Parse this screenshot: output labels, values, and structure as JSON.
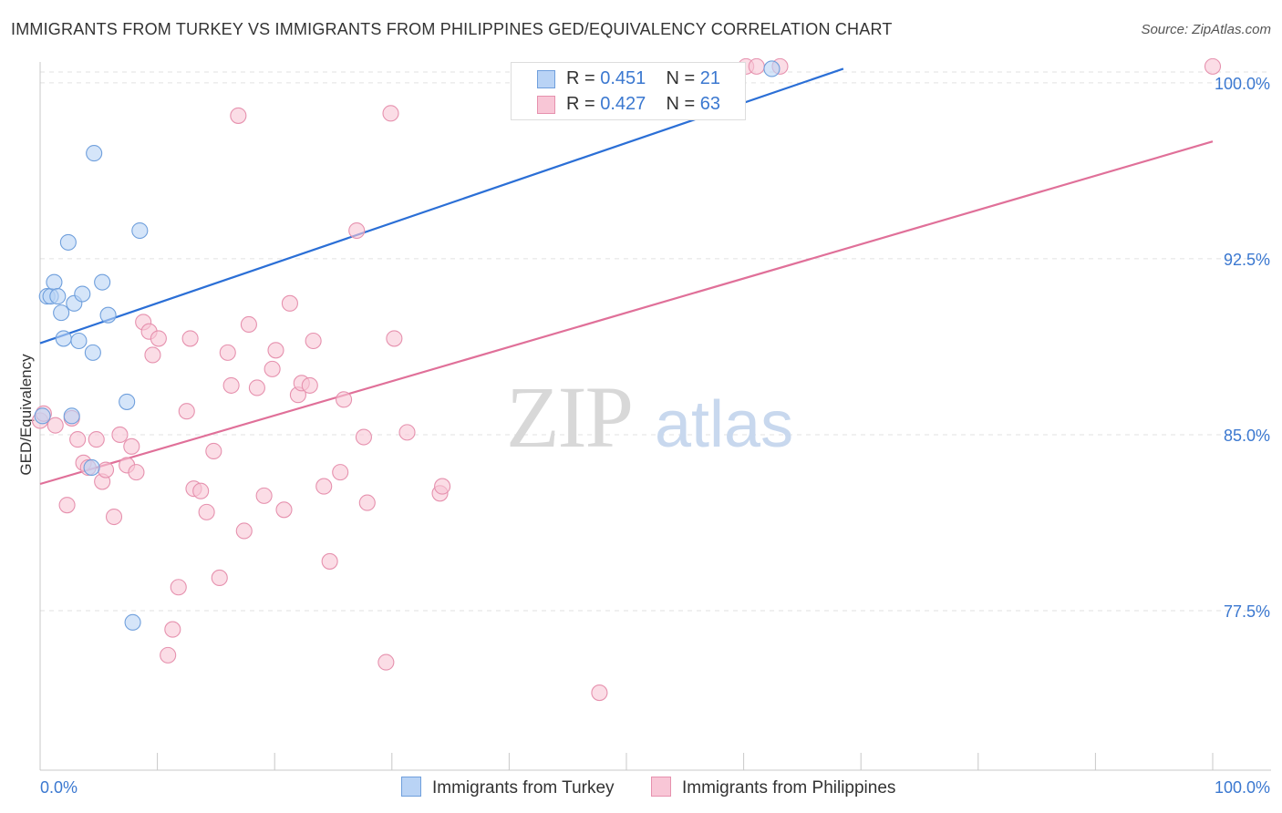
{
  "title": "IMMIGRANTS FROM TURKEY VS IMMIGRANTS FROM PHILIPPINES GED/EQUIVALENCY CORRELATION CHART",
  "source": "Source: ZipAtlas.com",
  "watermark": {
    "zip": "ZIP",
    "atlas": "atlas"
  },
  "legend": [
    {
      "r_label": "R =",
      "r_value": "0.451",
      "n_label": "N =",
      "n_value": "21"
    },
    {
      "r_label": "R =",
      "r_value": "0.427",
      "n_label": "N =",
      "n_value": "63"
    }
  ],
  "bottom_legend": [
    "Immigrants from Turkey",
    "Immigrants from Philippines"
  ],
  "colors": {
    "turkey_fill": "#b9d3f5",
    "turkey_stroke": "#6f9fdc",
    "turkey_line": "#2b6fd6",
    "phil_fill": "#f8c6d6",
    "phil_stroke": "#e691ae",
    "phil_line": "#e07099",
    "axis_label": "#3b78d0",
    "grid": "#e2e2e2"
  },
  "chart_data": {
    "type": "scatter",
    "title": "IMMIGRANTS FROM TURKEY VS IMMIGRANTS FROM PHILIPPINES GED/EQUIVALENCY CORRELATION CHART",
    "xlabel": "",
    "ylabel": "GED/Equivalency",
    "xlim": [
      0,
      100
    ],
    "ylim": [
      70.7,
      101.2
    ],
    "x_tick_labels": [
      "0.0%",
      "100.0%"
    ],
    "y_ticks": [
      77.5,
      85.0,
      92.5,
      100.0
    ],
    "y_tick_labels": [
      "77.5%",
      "85.0%",
      "92.5%",
      "100.0%"
    ],
    "grid": true,
    "series": [
      {
        "name": "Immigrants from Turkey",
        "points": [
          [
            0.2,
            85.8
          ],
          [
            0.6,
            90.9
          ],
          [
            0.9,
            90.9
          ],
          [
            1.2,
            91.5
          ],
          [
            1.5,
            90.9
          ],
          [
            1.8,
            90.2
          ],
          [
            2.0,
            89.1
          ],
          [
            2.4,
            93.2
          ],
          [
            2.7,
            85.8
          ],
          [
            2.9,
            90.6
          ],
          [
            3.3,
            89.0
          ],
          [
            3.6,
            91.0
          ],
          [
            4.4,
            83.6
          ],
          [
            4.5,
            88.5
          ],
          [
            4.6,
            97.0
          ],
          [
            5.3,
            91.5
          ],
          [
            5.8,
            90.1
          ],
          [
            7.4,
            86.4
          ],
          [
            7.9,
            77.0
          ],
          [
            8.5,
            93.7
          ],
          [
            62.4,
            100.6
          ]
        ],
        "trend": {
          "x0": 0.0,
          "y0": 88.9,
          "x1": 68.5,
          "y1": 100.6
        }
      },
      {
        "name": "Immigrants from Philippines",
        "points": [
          [
            0.0,
            85.6
          ],
          [
            0.3,
            85.9
          ],
          [
            1.3,
            85.4
          ],
          [
            2.3,
            82.0
          ],
          [
            2.7,
            85.7
          ],
          [
            3.2,
            84.8
          ],
          [
            3.7,
            83.8
          ],
          [
            4.1,
            83.6
          ],
          [
            4.8,
            84.8
          ],
          [
            5.3,
            83.0
          ],
          [
            5.6,
            83.5
          ],
          [
            6.3,
            81.5
          ],
          [
            6.8,
            85.0
          ],
          [
            7.4,
            83.7
          ],
          [
            7.8,
            84.5
          ],
          [
            8.2,
            83.4
          ],
          [
            8.8,
            89.8
          ],
          [
            9.3,
            89.4
          ],
          [
            9.6,
            88.4
          ],
          [
            10.1,
            89.1
          ],
          [
            10.9,
            75.6
          ],
          [
            11.3,
            76.7
          ],
          [
            11.8,
            78.5
          ],
          [
            12.5,
            86.0
          ],
          [
            12.8,
            89.1
          ],
          [
            13.1,
            82.7
          ],
          [
            13.7,
            82.6
          ],
          [
            14.2,
            81.7
          ],
          [
            14.8,
            84.3
          ],
          [
            15.3,
            78.9
          ],
          [
            16.0,
            88.5
          ],
          [
            16.3,
            87.1
          ],
          [
            16.9,
            98.6
          ],
          [
            17.4,
            80.9
          ],
          [
            17.8,
            89.7
          ],
          [
            18.5,
            87.0
          ],
          [
            19.1,
            82.4
          ],
          [
            19.8,
            87.8
          ],
          [
            20.1,
            88.6
          ],
          [
            20.8,
            81.8
          ],
          [
            21.3,
            90.6
          ],
          [
            22.0,
            86.7
          ],
          [
            22.3,
            87.2
          ],
          [
            23.0,
            87.1
          ],
          [
            23.3,
            89.0
          ],
          [
            24.2,
            82.8
          ],
          [
            24.7,
            79.6
          ],
          [
            25.6,
            83.4
          ],
          [
            25.9,
            86.5
          ],
          [
            27.0,
            93.7
          ],
          [
            27.6,
            84.9
          ],
          [
            27.9,
            82.1
          ],
          [
            29.5,
            75.3
          ],
          [
            29.9,
            98.7
          ],
          [
            30.2,
            89.1
          ],
          [
            31.3,
            85.1
          ],
          [
            34.1,
            82.5
          ],
          [
            34.3,
            82.8
          ],
          [
            47.7,
            74.0
          ],
          [
            60.2,
            100.7
          ],
          [
            61.1,
            100.7
          ],
          [
            63.1,
            100.7
          ],
          [
            100.0,
            100.7
          ]
        ],
        "trend": {
          "x0": 0.0,
          "y0": 82.9,
          "x1": 100.0,
          "y1": 97.5
        }
      }
    ]
  }
}
